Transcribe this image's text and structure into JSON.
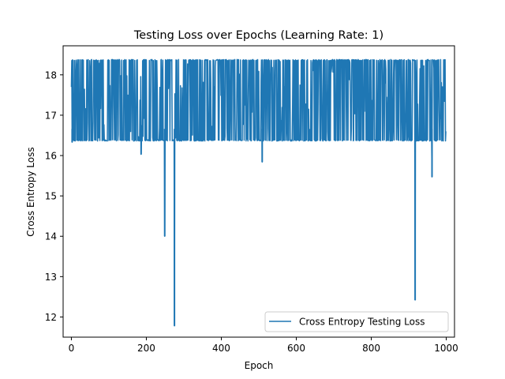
{
  "chart_data": {
    "type": "line",
    "title": "Testing Loss over Epochs (Learning Rate: 1)",
    "xlabel": "Epoch",
    "ylabel": "Cross Entropy Loss",
    "xlim": [
      -22,
      1022
    ],
    "ylim": [
      11.5,
      18.72
    ],
    "xticks": [
      0,
      200,
      400,
      600,
      800,
      1000
    ],
    "yticks": [
      12,
      13,
      14,
      15,
      16,
      17,
      18
    ],
    "grid": false,
    "legend_position": "lower-right",
    "series": [
      {
        "name": "Cross Entropy Testing Loss",
        "color": "#1f77b4",
        "band": {
          "low": 16.36,
          "high": 18.38
        },
        "dips": [
          {
            "x": 2,
            "y": 16.33
          },
          {
            "x": 186,
            "y": 16.03
          },
          {
            "x": 249,
            "y": 14.0
          },
          {
            "x": 275,
            "y": 11.78
          },
          {
            "x": 509,
            "y": 15.84
          },
          {
            "x": 917,
            "y": 12.42
          },
          {
            "x": 962,
            "y": 15.47
          }
        ],
        "points": [
          [
            0,
            17.7
          ],
          [
            1,
            16.5
          ],
          [
            2,
            16.33
          ],
          [
            3,
            18.3
          ],
          [
            4,
            16.4
          ],
          [
            5,
            18.38
          ],
          [
            8,
            16.37
          ],
          [
            10,
            18.38
          ],
          [
            20,
            16.36
          ],
          [
            40,
            18.38
          ],
          [
            60,
            16.37
          ],
          [
            80,
            18.37
          ],
          [
            100,
            16.36
          ],
          [
            120,
            18.38
          ],
          [
            140,
            16.37
          ],
          [
            160,
            18.38
          ],
          [
            185,
            16.37
          ],
          [
            186,
            16.03
          ],
          [
            187,
            17.3
          ],
          [
            200,
            18.38
          ],
          [
            220,
            16.36
          ],
          [
            240,
            18.38
          ],
          [
            248,
            16.4
          ],
          [
            249,
            14.0
          ],
          [
            250,
            17.0
          ],
          [
            260,
            18.38
          ],
          [
            274,
            16.4
          ],
          [
            275,
            11.78
          ],
          [
            276,
            16.8
          ],
          [
            300,
            18.38
          ],
          [
            350,
            16.36
          ],
          [
            400,
            18.38
          ],
          [
            450,
            16.37
          ],
          [
            500,
            18.38
          ],
          [
            508,
            16.4
          ],
          [
            509,
            15.84
          ],
          [
            510,
            17.1
          ],
          [
            550,
            18.38
          ],
          [
            600,
            16.36
          ],
          [
            650,
            18.38
          ],
          [
            700,
            16.37
          ],
          [
            750,
            18.38
          ],
          [
            800,
            16.36
          ],
          [
            850,
            18.38
          ],
          [
            900,
            16.37
          ],
          [
            916,
            16.4
          ],
          [
            917,
            12.42
          ],
          [
            918,
            17.2
          ],
          [
            940,
            18.38
          ],
          [
            961,
            16.4
          ],
          [
            962,
            15.47
          ],
          [
            963,
            17.0
          ],
          [
            980,
            18.38
          ],
          [
            995,
            16.37
          ],
          [
            997,
            17.7
          ],
          [
            998,
            16.6
          ],
          [
            999,
            16.6
          ]
        ]
      }
    ]
  }
}
